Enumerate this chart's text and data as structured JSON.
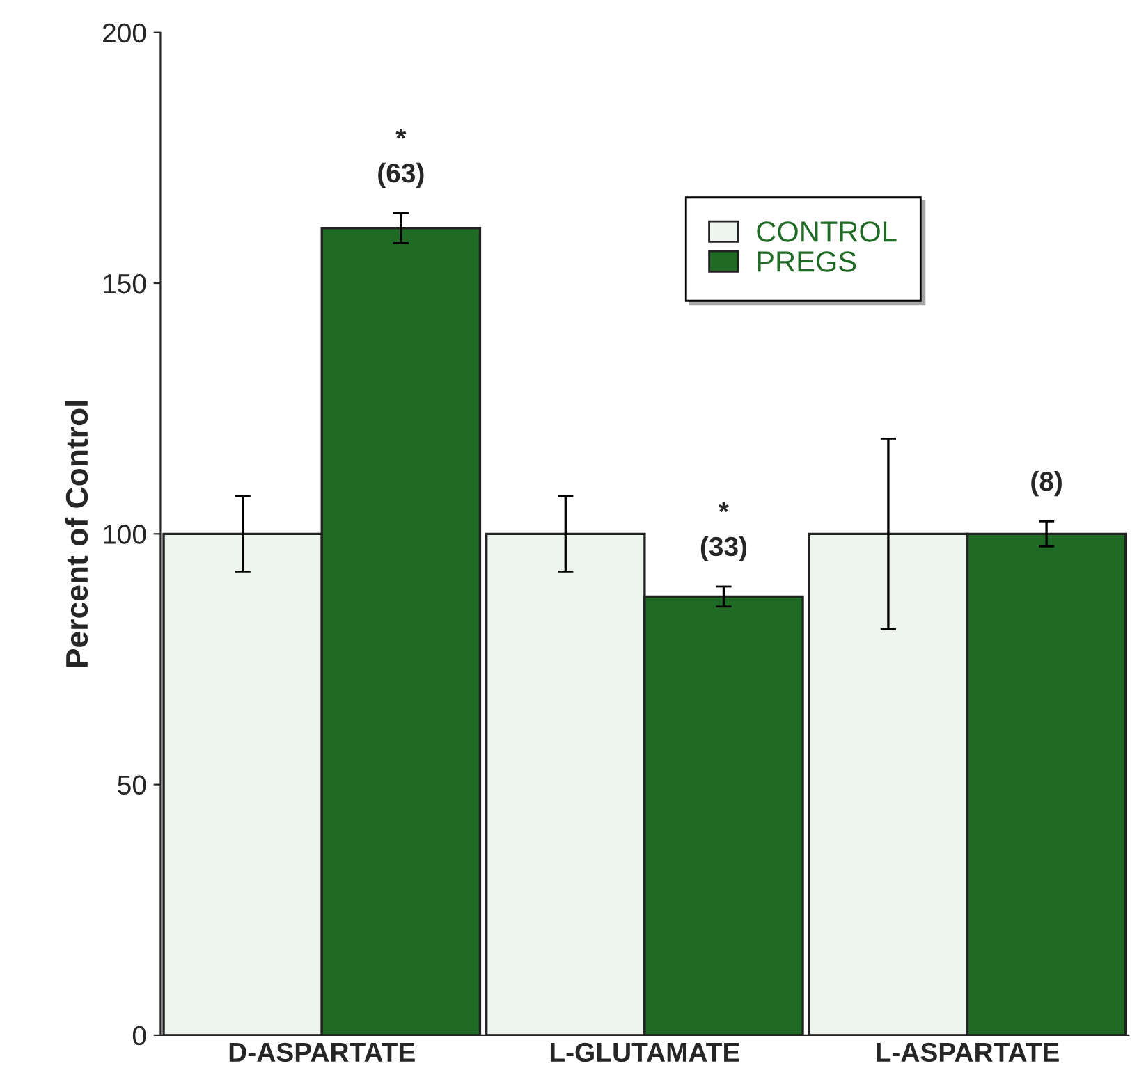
{
  "chart_data": {
    "type": "bar",
    "ylabel": "Percent of Control",
    "categories": [
      "D-ASPARTATE",
      "L-GLUTAMATE",
      "L-ASPARTATE"
    ],
    "series": [
      {
        "name": "CONTROL",
        "color": "#eef5ee",
        "values": [
          100,
          100,
          100
        ],
        "errors": [
          7.5,
          7.5,
          19
        ]
      },
      {
        "name": "PREGS",
        "color": "#1f6b25",
        "values": [
          161,
          87.5,
          100
        ],
        "errors": [
          3,
          2,
          2.5
        ]
      }
    ],
    "annotations": [
      "*\n(63)",
      "*\n(33)",
      "(8)"
    ],
    "ylim": [
      0,
      200
    ],
    "yticks": [
      0,
      50,
      100,
      150,
      200
    ],
    "grid": false,
    "legend": "top right"
  }
}
